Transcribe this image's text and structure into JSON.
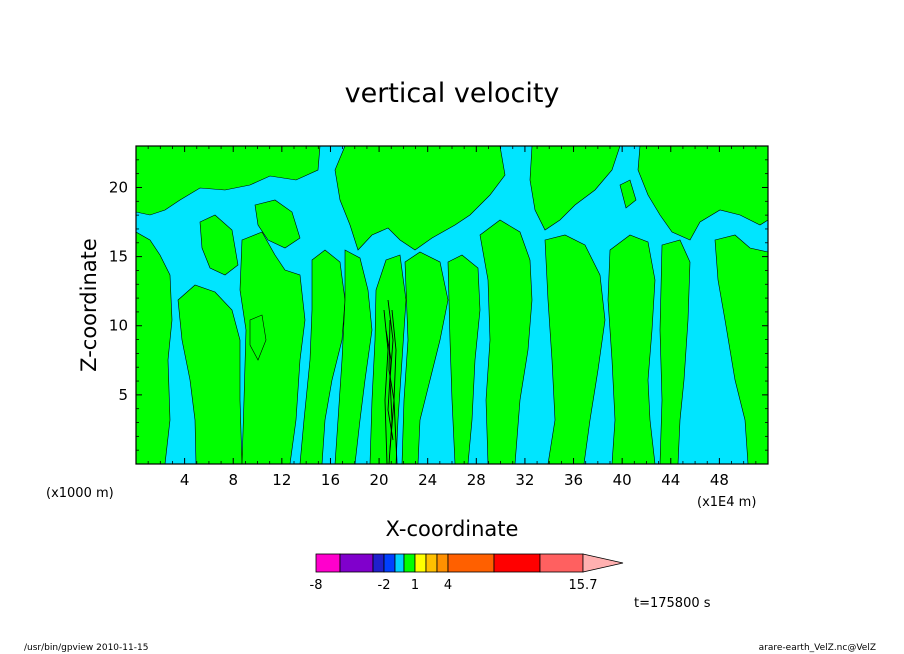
{
  "chart_data": {
    "type": "contour",
    "title": "vertical velocity",
    "xlabel": "X-coordinate",
    "ylabel": "Z-coordinate",
    "x_unit_note": "(x1E4 m)",
    "y_unit_note": "(x1000 m)",
    "xlim": [
      0,
      52
    ],
    "ylim": [
      0,
      23
    ],
    "x_ticks": [
      4,
      8,
      12,
      16,
      20,
      24,
      28,
      32,
      36,
      40,
      44,
      48
    ],
    "y_ticks": [
      5,
      10,
      15,
      20
    ],
    "time_label": "t=175800 s",
    "footer_left": "/usr/bin/gpview   2010-11-15",
    "footer_right": "arare-earth_VelZ.nc@VelZ",
    "regions": {
      "negative_color": "#00e5ff",
      "positive_color": "#00ff00",
      "contour_line_color": "#000000"
    },
    "colorbar": {
      "colors": [
        "#ff00cc",
        "#8000cc",
        "#2020cc",
        "#0040ff",
        "#00d0ff",
        "#00ff00",
        "#ffff00",
        "#ffc000",
        "#ff9000",
        "#ff6000",
        "#ff0000",
        "#ff6060",
        "#ffb0b0"
      ],
      "tick_labels": [
        "-8",
        "-2",
        "1",
        "4",
        "15.7"
      ]
    }
  }
}
